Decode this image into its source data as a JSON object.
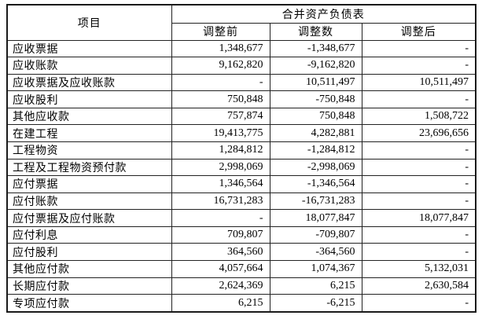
{
  "table": {
    "item_header": "项目",
    "group_header": "合并资产负债表",
    "col_headers": {
      "before": "调整前",
      "adjust": "调整数",
      "after": "调整后"
    },
    "rows": [
      {
        "item": "应收票据",
        "before": "1,348,677",
        "adjust": "-1,348,677",
        "after": "-"
      },
      {
        "item": "应收账款",
        "before": "9,162,820",
        "adjust": "-9,162,820",
        "after": "-"
      },
      {
        "item": "应收票据及应收账款",
        "before": "-",
        "adjust": "10,511,497",
        "after": "10,511,497"
      },
      {
        "item": "应收股利",
        "before": "750,848",
        "adjust": "-750,848",
        "after": "-"
      },
      {
        "item": "其他应收款",
        "before": "757,874",
        "adjust": "750,848",
        "after": "1,508,722"
      },
      {
        "item": "在建工程",
        "before": "19,413,775",
        "adjust": "4,282,881",
        "after": "23,696,656"
      },
      {
        "item": "工程物资",
        "before": "1,284,812",
        "adjust": "-1,284,812",
        "after": "-"
      },
      {
        "item": "工程及工程物资预付款",
        "before": "2,998,069",
        "adjust": "-2,998,069",
        "after": "-"
      },
      {
        "item": "应付票据",
        "before": "1,346,564",
        "adjust": "-1,346,564",
        "after": "-"
      },
      {
        "item": "应付账款",
        "before": "16,731,283",
        "adjust": "-16,731,283",
        "after": "-"
      },
      {
        "item": "应付票据及应付账款",
        "before": "-",
        "adjust": "18,077,847",
        "after": "18,077,847"
      },
      {
        "item": "应付利息",
        "before": "709,807",
        "adjust": "-709,807",
        "after": "-"
      },
      {
        "item": "应付股利",
        "before": "364,560",
        "adjust": "-364,560",
        "after": "-"
      },
      {
        "item": "其他应付款",
        "before": "4,057,664",
        "adjust": "1,074,367",
        "after": "5,132,031"
      },
      {
        "item": "长期应付款",
        "before": "2,624,369",
        "adjust": "6,215",
        "after": "2,630,584"
      },
      {
        "item": "专项应付款",
        "before": "6,215",
        "adjust": "-6,215",
        "after": "-"
      }
    ]
  }
}
